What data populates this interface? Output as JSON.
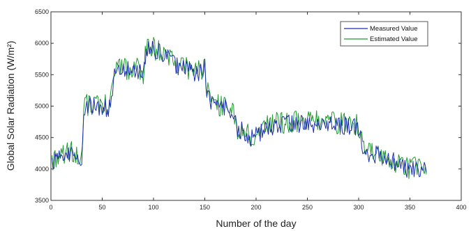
{
  "chart_data": {
    "type": "line",
    "title": "",
    "xlabel": "Number of the day",
    "ylabel": "Global Solar Radiation (W/m²)",
    "xlim": [
      0,
      400
    ],
    "ylim": [
      3500,
      6500
    ],
    "xticks": [
      0,
      50,
      100,
      150,
      200,
      250,
      300,
      350,
      400
    ],
    "yticks": [
      3500,
      4000,
      4500,
      5000,
      5500,
      6000,
      6500
    ],
    "grid": false,
    "legend_position": "top-right",
    "colors": {
      "measured": "#1c2fb0",
      "estimated": "#1e9a2e",
      "axis": "#333333"
    },
    "x": [
      1,
      5,
      10,
      15,
      20,
      25,
      30,
      31,
      33,
      38,
      42,
      48,
      52,
      56,
      60,
      61,
      64,
      70,
      76,
      82,
      86,
      90,
      92,
      93,
      95,
      98,
      102,
      106,
      110,
      114,
      118,
      122,
      126,
      130,
      134,
      138,
      142,
      146,
      150,
      152,
      154,
      157,
      162,
      167,
      172,
      176,
      180,
      182,
      184,
      187,
      192,
      198,
      202,
      206,
      210,
      214,
      218,
      225,
      232,
      240,
      250,
      260,
      270,
      280,
      290,
      298,
      302,
      304,
      306,
      310,
      315,
      320,
      325,
      330,
      335,
      340,
      345,
      350,
      355,
      360,
      366
    ],
    "series": [
      {
        "name": "Measured Value",
        "values": [
          4120,
          4160,
          4200,
          4230,
          4240,
          4200,
          4100,
          4500,
          4980,
          5000,
          5030,
          4970,
          5040,
          4900,
          5200,
          5440,
          5520,
          5580,
          5560,
          5580,
          5540,
          5500,
          5750,
          5880,
          5900,
          5920,
          5870,
          5850,
          5820,
          5780,
          5720,
          5650,
          5610,
          5600,
          5570,
          5530,
          5520,
          5560,
          5600,
          5240,
          5130,
          5050,
          5010,
          4980,
          4950,
          4900,
          4750,
          4560,
          4570,
          4620,
          4520,
          4480,
          4560,
          4600,
          4640,
          4660,
          4710,
          4700,
          4710,
          4720,
          4730,
          4710,
          4700,
          4690,
          4680,
          4660,
          4620,
          4350,
          4300,
          4240,
          4230,
          4200,
          4180,
          4150,
          4100,
          4060,
          4020,
          3990,
          4010,
          3980,
          3980
        ]
      },
      {
        "name": "Estimated Value",
        "values": [
          4150,
          4190,
          4220,
          4240,
          4260,
          4220,
          4150,
          4550,
          5000,
          5030,
          5060,
          5010,
          5070,
          4950,
          5250,
          5460,
          5550,
          5620,
          5590,
          5600,
          5570,
          5520,
          5780,
          5900,
          5930,
          5950,
          5900,
          5870,
          5850,
          5810,
          5760,
          5690,
          5650,
          5630,
          5600,
          5560,
          5550,
          5580,
          5620,
          5270,
          5160,
          5080,
          5040,
          5000,
          4970,
          4920,
          4780,
          4590,
          4600,
          4650,
          4560,
          4510,
          4600,
          4640,
          4680,
          4700,
          4740,
          4740,
          4750,
          4760,
          4770,
          4750,
          4740,
          4730,
          4720,
          4700,
          4650,
          4400,
          4330,
          4270,
          4260,
          4230,
          4210,
          4180,
          4130,
          4090,
          4050,
          4010,
          4030,
          4000,
          4000
        ]
      }
    ]
  }
}
